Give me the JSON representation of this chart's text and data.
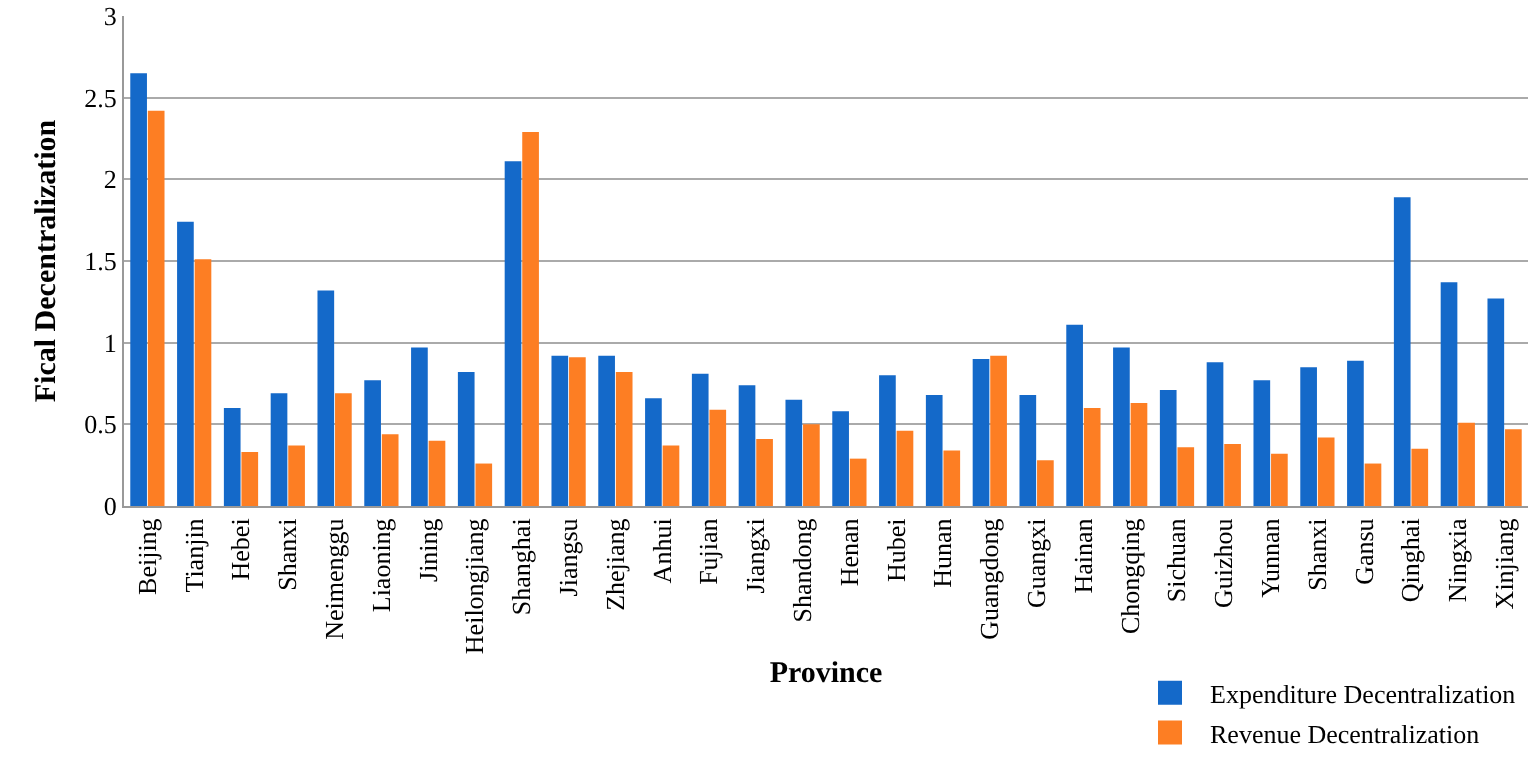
{
  "chart_data": {
    "type": "bar",
    "xlabel": "Province",
    "ylabel": "Fical Decentralization",
    "categories": [
      "Beijing",
      "Tianjin",
      "Hebei",
      "Shanxi",
      "Neimenggu",
      "Liaoning",
      "Jining",
      "Heilongjiang",
      "Shanghai",
      "Jiangsu",
      "Zhejiang",
      "Anhui",
      "Fujian",
      "Jiangxi",
      "Shandong",
      "Henan",
      "Hubei",
      "Hunan",
      "Guangdong",
      "Guangxi",
      "Hainan",
      "Chongqing",
      "Sichuan",
      "Guizhou",
      "Yunnan",
      "Shanxi",
      "Gansu",
      "Qinghai",
      "Ningxia",
      "Xinjiang"
    ],
    "series": [
      {
        "name": "Expenditure Decentralization",
        "color": "#1469c9",
        "values": [
          2.65,
          1.74,
          0.6,
          0.69,
          1.32,
          0.77,
          0.97,
          0.82,
          2.11,
          0.92,
          0.92,
          0.66,
          0.81,
          0.74,
          0.65,
          0.58,
          0.8,
          0.68,
          0.9,
          0.68,
          1.11,
          0.97,
          0.71,
          0.88,
          0.77,
          0.85,
          0.89,
          1.89,
          1.37,
          1.27
        ]
      },
      {
        "name": "Revenue Decentralization",
        "color": "#fd7e23",
        "values": [
          2.42,
          1.51,
          0.33,
          0.37,
          0.69,
          0.44,
          0.4,
          0.26,
          2.29,
          0.91,
          0.82,
          0.37,
          0.59,
          0.41,
          0.5,
          0.29,
          0.46,
          0.34,
          0.92,
          0.28,
          0.6,
          0.63,
          0.36,
          0.38,
          0.32,
          0.42,
          0.26,
          0.35,
          0.51,
          0.47
        ]
      }
    ],
    "ylim": [
      0,
      3
    ],
    "yticks": [
      0,
      0.5,
      1,
      1.5,
      2,
      2.5,
      3
    ],
    "grid": "y",
    "legend": "bottom right"
  }
}
